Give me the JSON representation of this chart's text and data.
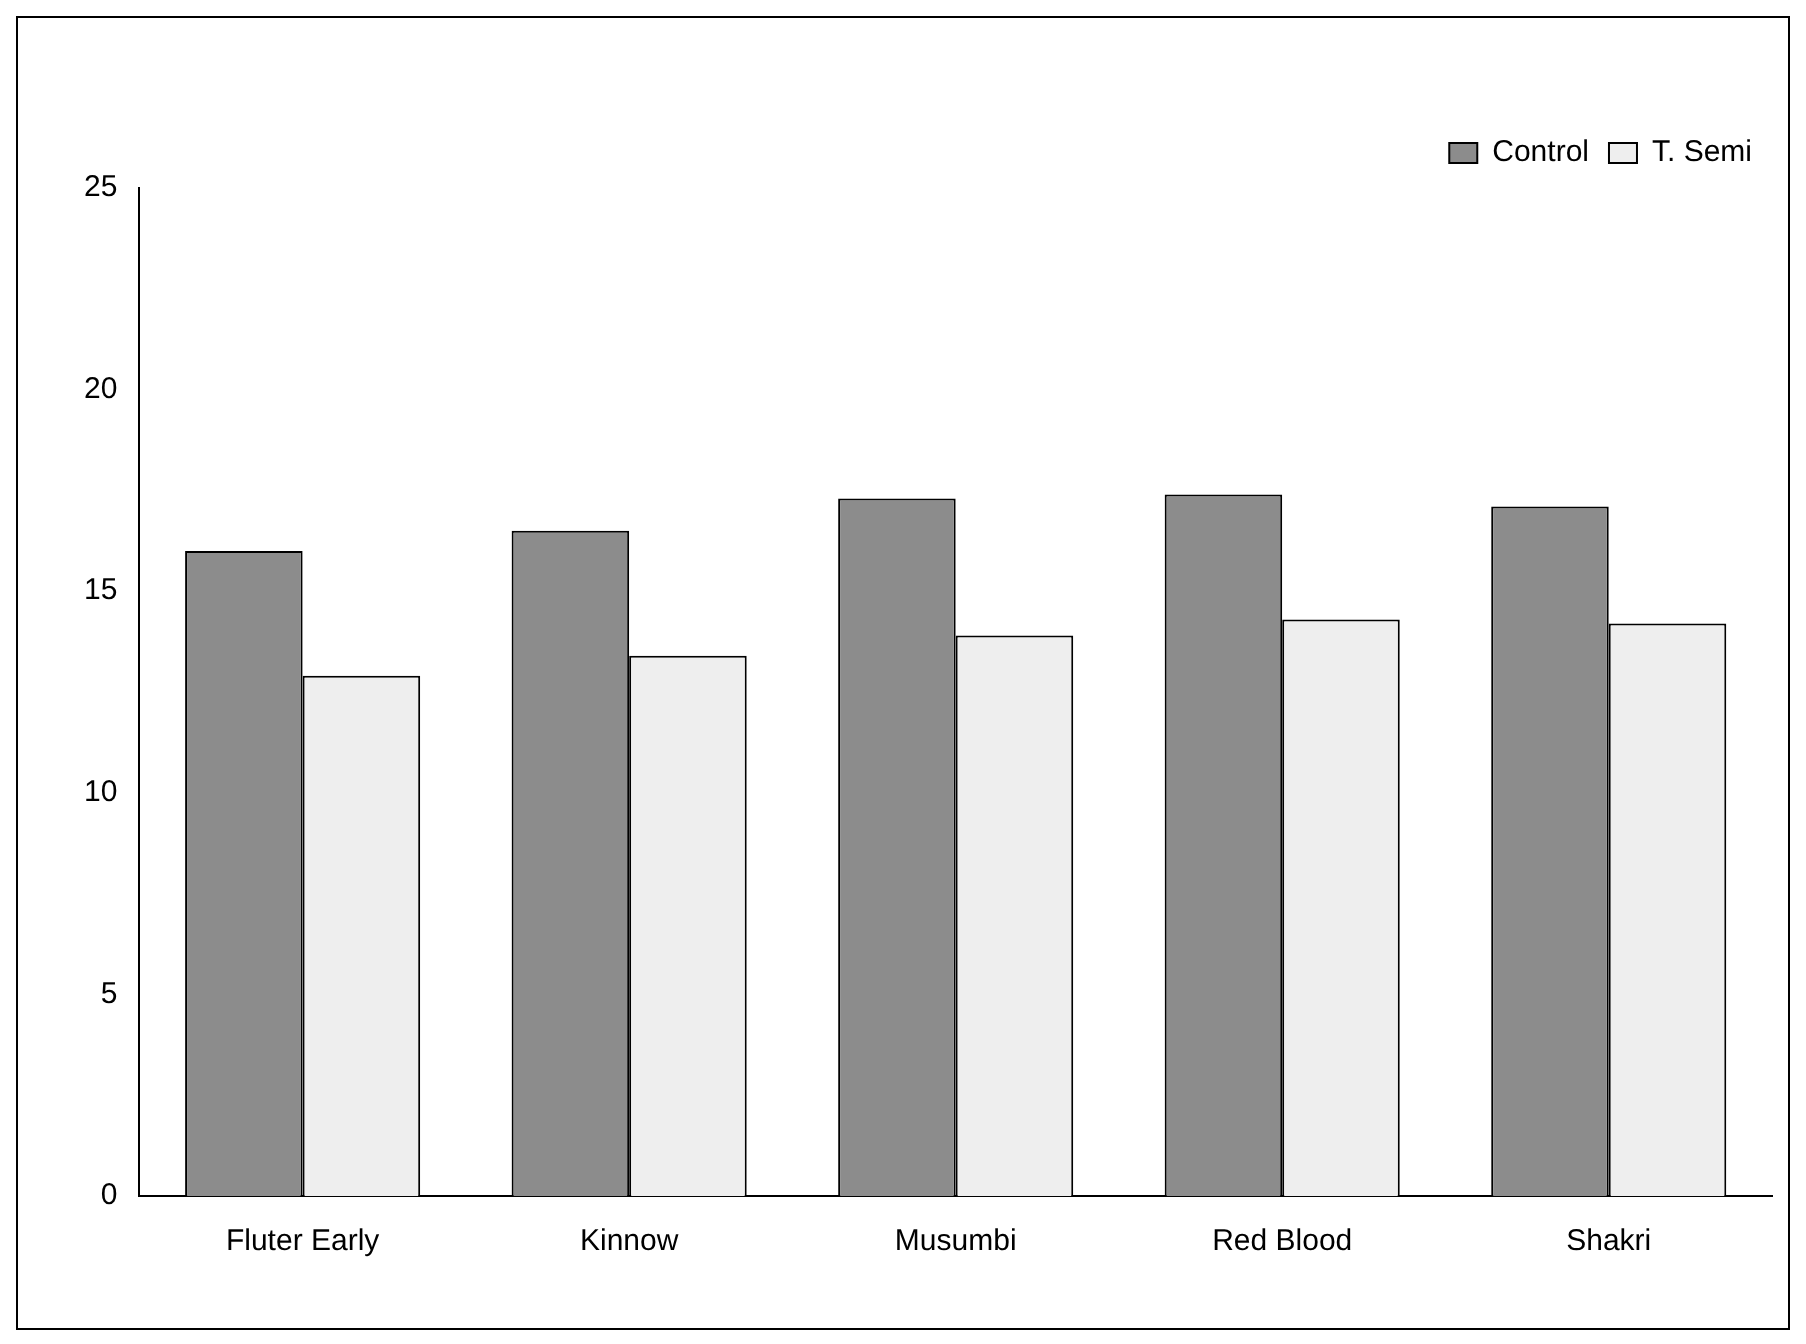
{
  "chart_data": {
    "type": "bar",
    "categories": [
      "Fluter Early",
      "Kinnow",
      "Musumbi",
      "Red Blood",
      "Shakri"
    ],
    "series": [
      {
        "name": "Control",
        "color": "#8c8c8c",
        "values": [
          16.0,
          16.5,
          17.3,
          17.4,
          17.1
        ]
      },
      {
        "name": "T. Semi",
        "color": "#eeeeee",
        "values": [
          12.9,
          13.4,
          13.9,
          14.3,
          14.2
        ]
      }
    ],
    "ylim": [
      0,
      25
    ],
    "yticks": [
      0,
      5,
      10,
      15,
      20,
      25
    ],
    "grid": false,
    "legend": "top right"
  }
}
